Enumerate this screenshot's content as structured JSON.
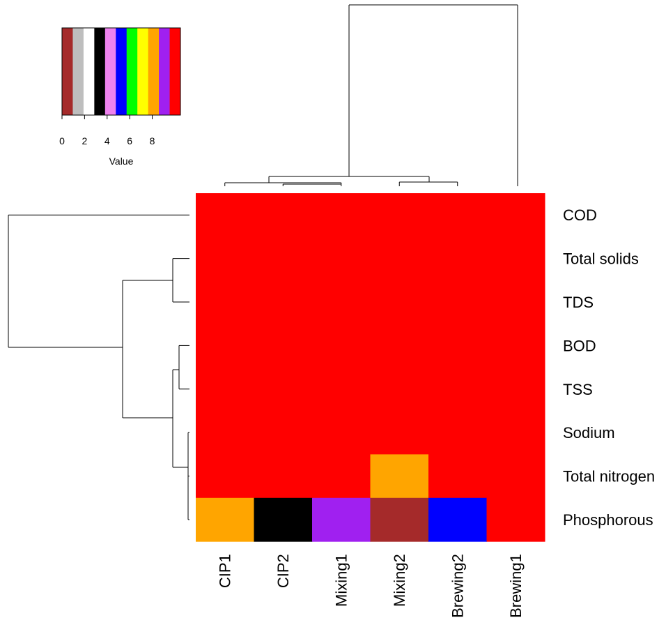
{
  "chart_data": {
    "type": "heatmap",
    "rows": [
      "COD",
      "Total solids",
      "TDS",
      "BOD",
      "TSS",
      "Sodium",
      "Total nitrogen",
      "Phosphorous"
    ],
    "columns": [
      "CIP1",
      "CIP2",
      "Mixing1",
      "Mixing2",
      "Brewing2",
      "Brewing1"
    ],
    "values": [
      [
        10,
        10,
        10,
        10,
        10,
        10
      ],
      [
        10,
        10,
        10,
        10,
        10,
        10
      ],
      [
        10,
        10,
        10,
        10,
        10,
        10
      ],
      [
        10,
        10,
        10,
        10,
        10,
        10
      ],
      [
        10,
        10,
        10,
        10,
        10,
        10
      ],
      [
        10,
        10,
        10,
        10,
        10,
        10
      ],
      [
        10,
        10,
        10,
        8,
        10,
        10
      ],
      [
        8,
        3,
        9,
        0,
        5,
        10
      ]
    ],
    "color_key": {
      "label": "Value",
      "range": [
        0,
        10.5
      ],
      "ticks": [
        "0",
        "2",
        "4",
        "6",
        "8"
      ],
      "tick_values": [
        0,
        2,
        4,
        6,
        8
      ],
      "colors": [
        "#a52a2a",
        "#bebebe",
        "#ffffff",
        "#000000",
        "#ee82ee",
        "#0000ff",
        "#00ff00",
        "#ffff00",
        "#ffa500",
        "#a020f0",
        "#ff0000"
      ]
    },
    "dendrograms": {
      "rows": true,
      "columns": true
    }
  }
}
